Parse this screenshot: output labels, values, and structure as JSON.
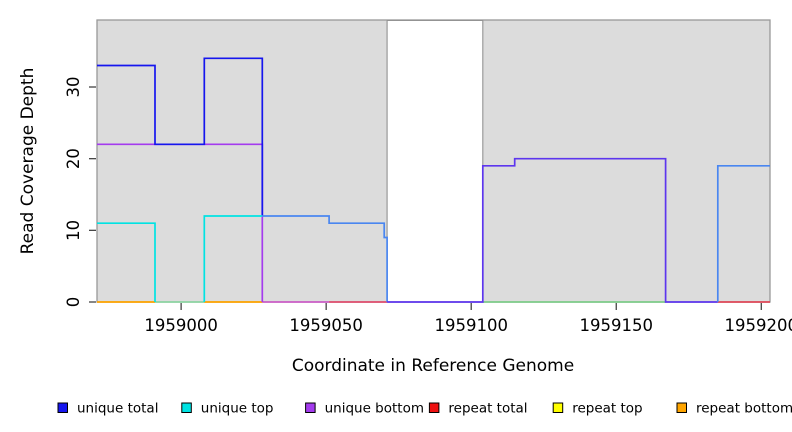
{
  "figure": {
    "xlabel": "Coordinate in Reference Genome",
    "ylabel": "Read Coverage Depth"
  },
  "chart_data": {
    "type": "line",
    "subtype": "step-coverage",
    "title": "",
    "xlabel": "Coordinate in Reference Genome",
    "ylabel": "Read Coverage Depth",
    "xlim": [
      1958971,
      1959203
    ],
    "ylim": [
      0,
      39.35
    ],
    "grid": false,
    "plot_bg_color": "#DCDCDC",
    "border_color": "#999999",
    "tick_color": "#444444",
    "x_ticks": [
      {
        "label": "1959000",
        "value": 1959000
      },
      {
        "label": "1959050",
        "value": 1959050
      },
      {
        "label": "1959100",
        "value": 1959100
      },
      {
        "label": "1959150",
        "value": 1959150
      },
      {
        "label": "1959200",
        "value": 1959200
      }
    ],
    "y_ticks": [
      {
        "label": "0",
        "value": 0
      },
      {
        "label": "10",
        "value": 10
      },
      {
        "label": "20",
        "value": 20
      },
      {
        "label": "30",
        "value": 30
      }
    ],
    "white_band": {
      "x1": 1959071,
      "x2": 1959104,
      "color": "#FFFFFF",
      "border": "#888888"
    },
    "series": [
      {
        "name": "unique total",
        "color": "#1616EE",
        "steps": [
          [
            1958971,
            33
          ],
          [
            1958991,
            22
          ],
          [
            1959008,
            34
          ],
          [
            1959028,
            12
          ],
          [
            1959051,
            11
          ],
          [
            1959070,
            9
          ],
          [
            1959071,
            0
          ],
          [
            1959104,
            19
          ],
          [
            1959115,
            20
          ],
          [
            1959167,
            0
          ],
          [
            1959185,
            19
          ]
        ],
        "end_x": 1959203
      },
      {
        "name": "unique top",
        "color": "#00E3E3",
        "steps": [
          [
            1958971,
            11
          ],
          [
            1958991,
            0
          ],
          [
            1959008,
            12
          ],
          [
            1959051,
            11
          ],
          [
            1959070,
            9
          ],
          [
            1959071,
            0
          ],
          [
            1959185,
            19
          ]
        ],
        "end_x": 1959203
      },
      {
        "name": "unique bottom",
        "color": "#A43BEE",
        "steps": [
          [
            1958971,
            22
          ],
          [
            1959028,
            0
          ],
          [
            1959104,
            19
          ],
          [
            1959115,
            20
          ],
          [
            1959167,
            0
          ]
        ],
        "end_x": 1959203
      },
      {
        "name": "repeat total",
        "color": "#EE1111",
        "steps": [
          [
            1958971,
            0
          ]
        ],
        "end_x": 1959203
      },
      {
        "name": "repeat top",
        "color": "#FFFF00",
        "steps": [
          [
            1958971,
            0
          ]
        ],
        "end_x": 1959203
      },
      {
        "name": "repeat bottom",
        "color": "#FFA500",
        "steps": [
          [
            1958971,
            0
          ]
        ],
        "end_x": 1959203
      }
    ],
    "render_segments": [
      {
        "id": "baseline-orange-1",
        "color": "#FFA500",
        "points": [
          [
            1958971,
            0
          ],
          [
            1958991,
            0
          ]
        ]
      },
      {
        "id": "baseline-green-1",
        "color": "#8FD6A5",
        "points": [
          [
            1958991,
            0
          ],
          [
            1959008,
            0
          ]
        ]
      },
      {
        "id": "baseline-orange-2",
        "color": "#FFA500",
        "points": [
          [
            1959008,
            0
          ],
          [
            1959028,
            0
          ]
        ]
      },
      {
        "id": "baseline-magenta-1",
        "color": "#CD5FC8",
        "points": [
          [
            1959028,
            0
          ],
          [
            1959051,
            0
          ]
        ]
      },
      {
        "id": "baseline-magenta-2",
        "color": "#E04E6E",
        "points": [
          [
            1959051,
            0
          ],
          [
            1959071,
            0
          ]
        ]
      },
      {
        "id": "baseline-green-2",
        "color": "#7FCE8B",
        "points": [
          [
            1959104,
            0
          ],
          [
            1959167,
            0
          ]
        ]
      },
      {
        "id": "baseline-crimson",
        "color": "#E04858",
        "points": [
          [
            1959185,
            0
          ],
          [
            1959203,
            0
          ]
        ]
      },
      {
        "id": "unique-bottom-line",
        "color": "#A43BEE",
        "points": [
          [
            1958971,
            22
          ],
          [
            1959028,
            22
          ],
          [
            1959028,
            0
          ]
        ]
      },
      {
        "id": "unique-total-line",
        "color": "#1616EE",
        "points": [
          [
            1958971,
            33
          ],
          [
            1958991,
            33
          ],
          [
            1958991,
            22
          ],
          [
            1959008,
            22
          ],
          [
            1959008,
            34
          ],
          [
            1959028,
            34
          ],
          [
            1959028,
            12
          ]
        ]
      },
      {
        "id": "unique-top-line-1",
        "color": "#00E3E3",
        "points": [
          [
            1958971,
            11
          ],
          [
            1958991,
            11
          ],
          [
            1958991,
            0
          ]
        ]
      },
      {
        "id": "unique-top-line-2",
        "color": "#00E3E3",
        "points": [
          [
            1959008,
            0
          ],
          [
            1959008,
            12
          ],
          [
            1959028,
            12
          ]
        ]
      },
      {
        "id": "total-top-blend-1",
        "color": "#4A86F0",
        "points": [
          [
            1959028,
            12
          ],
          [
            1959051,
            12
          ],
          [
            1959051,
            11
          ],
          [
            1959070,
            11
          ],
          [
            1959070,
            9
          ],
          [
            1959071,
            9
          ],
          [
            1959071,
            0
          ]
        ]
      },
      {
        "id": "total-bottom-blend",
        "color": "#5D36EE",
        "points": [
          [
            1959071,
            0
          ],
          [
            1959104,
            0
          ],
          [
            1959104,
            19
          ],
          [
            1959115,
            19
          ],
          [
            1959115,
            20
          ],
          [
            1959167,
            20
          ],
          [
            1959167,
            0
          ],
          [
            1959185,
            0
          ]
        ]
      },
      {
        "id": "total-top-blend-2",
        "color": "#4A86F0",
        "points": [
          [
            1959185,
            0
          ],
          [
            1959185,
            19
          ],
          [
            1959203,
            19
          ]
        ]
      }
    ],
    "legend": {
      "position": "bottom",
      "items": [
        {
          "label": "unique total",
          "color": "#1616EE"
        },
        {
          "label": "unique top",
          "color": "#00E3E3"
        },
        {
          "label": "unique bottom",
          "color": "#A43BEE"
        },
        {
          "label": "repeat total",
          "color": "#EE1111"
        },
        {
          "label": "repeat top",
          "color": "#FFFF00"
        },
        {
          "label": "repeat bottom",
          "color": "#FFA500"
        }
      ]
    }
  }
}
